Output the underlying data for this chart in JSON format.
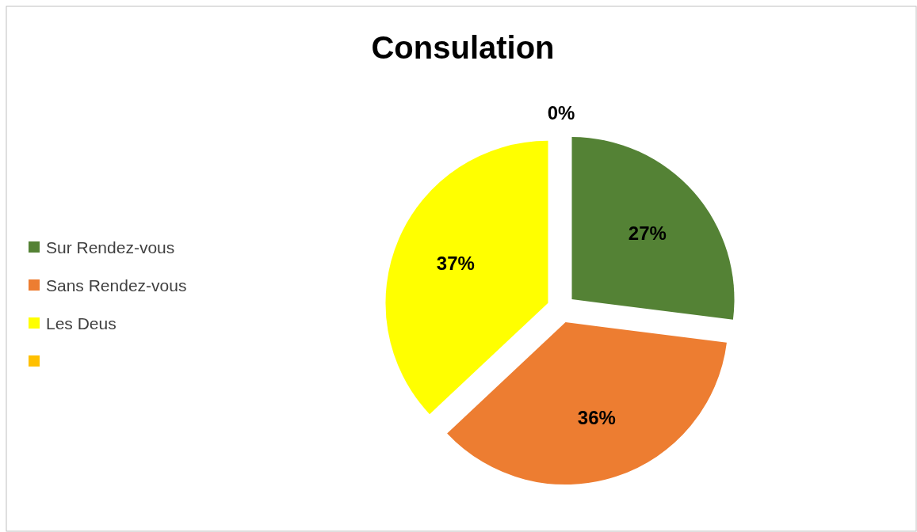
{
  "chart_data": {
    "type": "pie",
    "title": "Consulation",
    "categories": [
      "Sur Rendez-vous",
      "Sans Rendez-vous",
      "Les Deus",
      null
    ],
    "values": [
      27,
      36,
      37,
      0
    ],
    "colors": [
      "#548235",
      "#ed7d31",
      "#ffff00",
      "#ffc000"
    ],
    "value_labels": [
      "27%",
      "36%",
      "37%",
      "0%"
    ],
    "legend": "left"
  }
}
